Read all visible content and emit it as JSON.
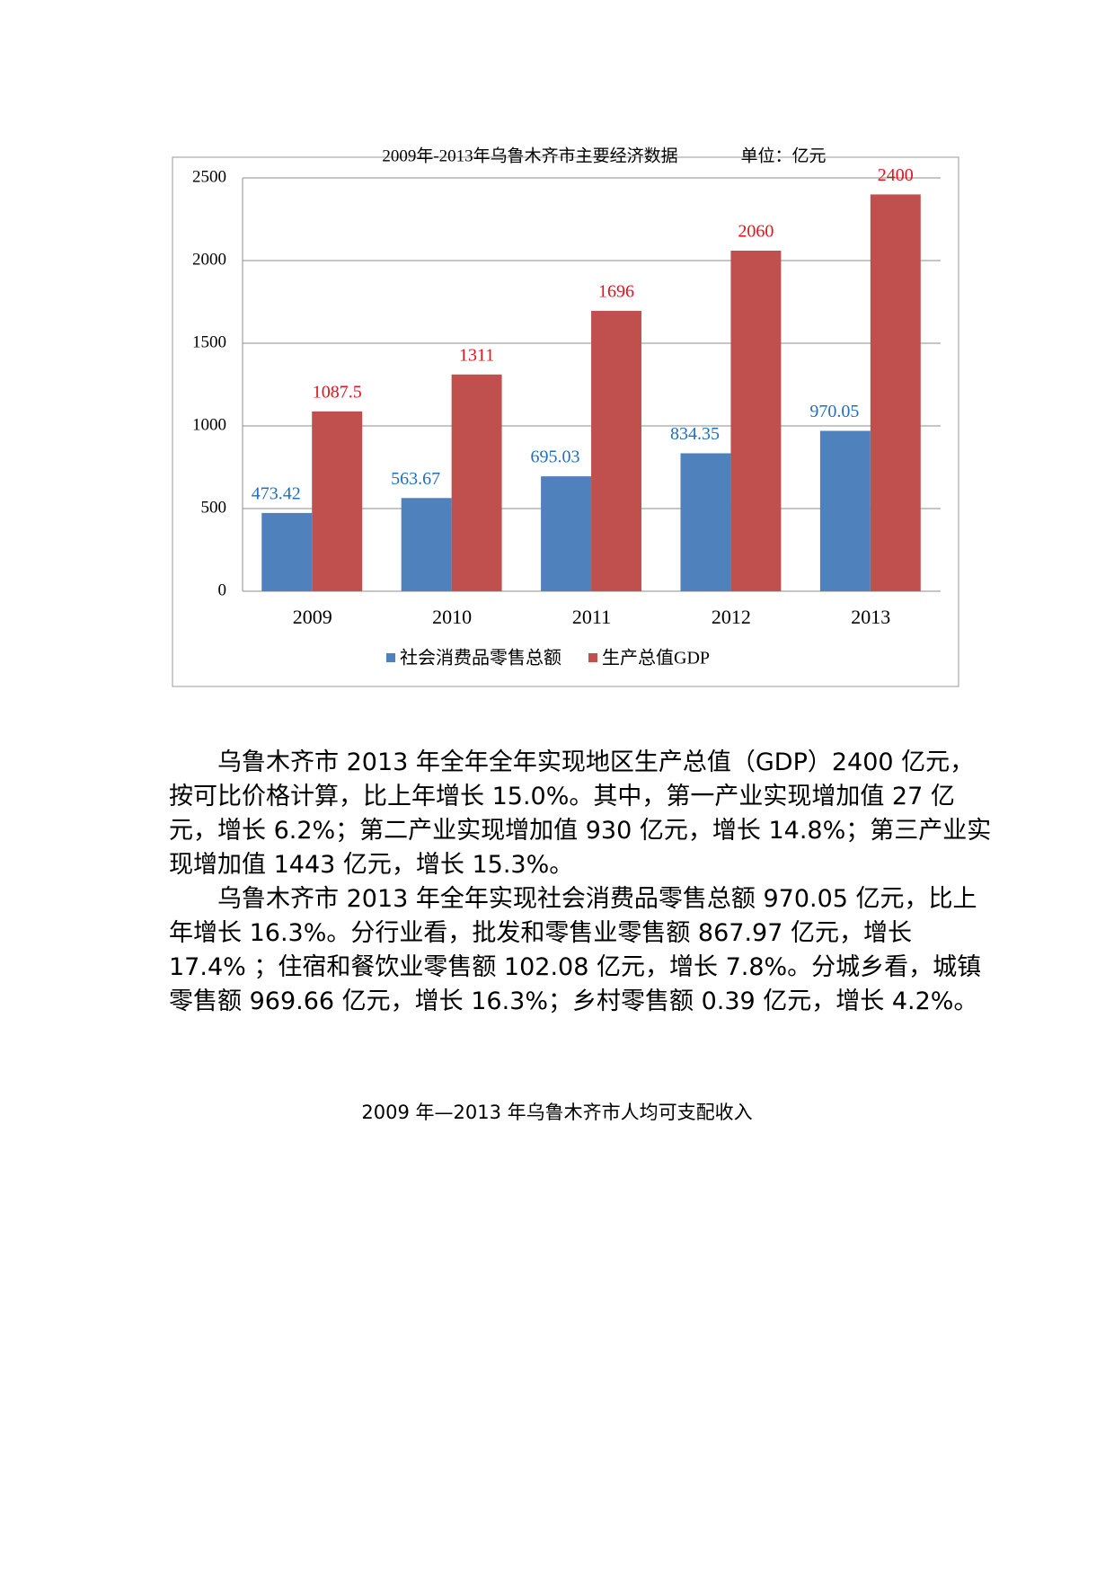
{
  "chart_data": {
    "type": "bar",
    "title": "2009年-2013年乌鲁木齐市主要经济数据",
    "unit": "单位：亿元",
    "categories": [
      "2009",
      "2010",
      "2011",
      "2012",
      "2013"
    ],
    "series": [
      {
        "name": "社会消费品零售总额",
        "color": "#4f81bd",
        "label_color": "#1f6fc0",
        "values": [
          473.42,
          563.67,
          695.03,
          834.35,
          970.05
        ]
      },
      {
        "name": "生产总值GDP",
        "color": "#c0504d",
        "label_color": "#e8101a",
        "values": [
          1087.5,
          1311,
          1696,
          2060,
          2400
        ]
      }
    ],
    "ylim": [
      0,
      2500
    ],
    "yticks": [
      0,
      500,
      1000,
      1500,
      2000,
      2500
    ],
    "grid": true,
    "legend": "bottom"
  },
  "paragraphs": [
    "乌鲁木齐市 2013 年全年全年实现地区生产总值（GDP）2400 亿元，按可比价格计算，比上年增长 15.0%。其中，第一产业实现增加值 27 亿元，增长 6.2%；第二产业实现增加值 930 亿元，增长 14.8%；第三产业实现增加值 1443 亿元，增长 15.3%。",
    "乌鲁木齐市 2013 年全年实现社会消费品零售总额 970.05 亿元，比上年增长 16.3%。分行业看，批发和零售业零售额 867.97 亿元，增长 17.4% ；住宿和餐饮业零售额 102.08 亿元，增长 7.8%。分城乡看，城镇零售额 969.66 亿元，增长 16.3%；乡村零售额 0.39 亿元，增长 4.2%。"
  ],
  "caption": "2009 年—2013 年乌鲁木齐市人均可支配收入"
}
